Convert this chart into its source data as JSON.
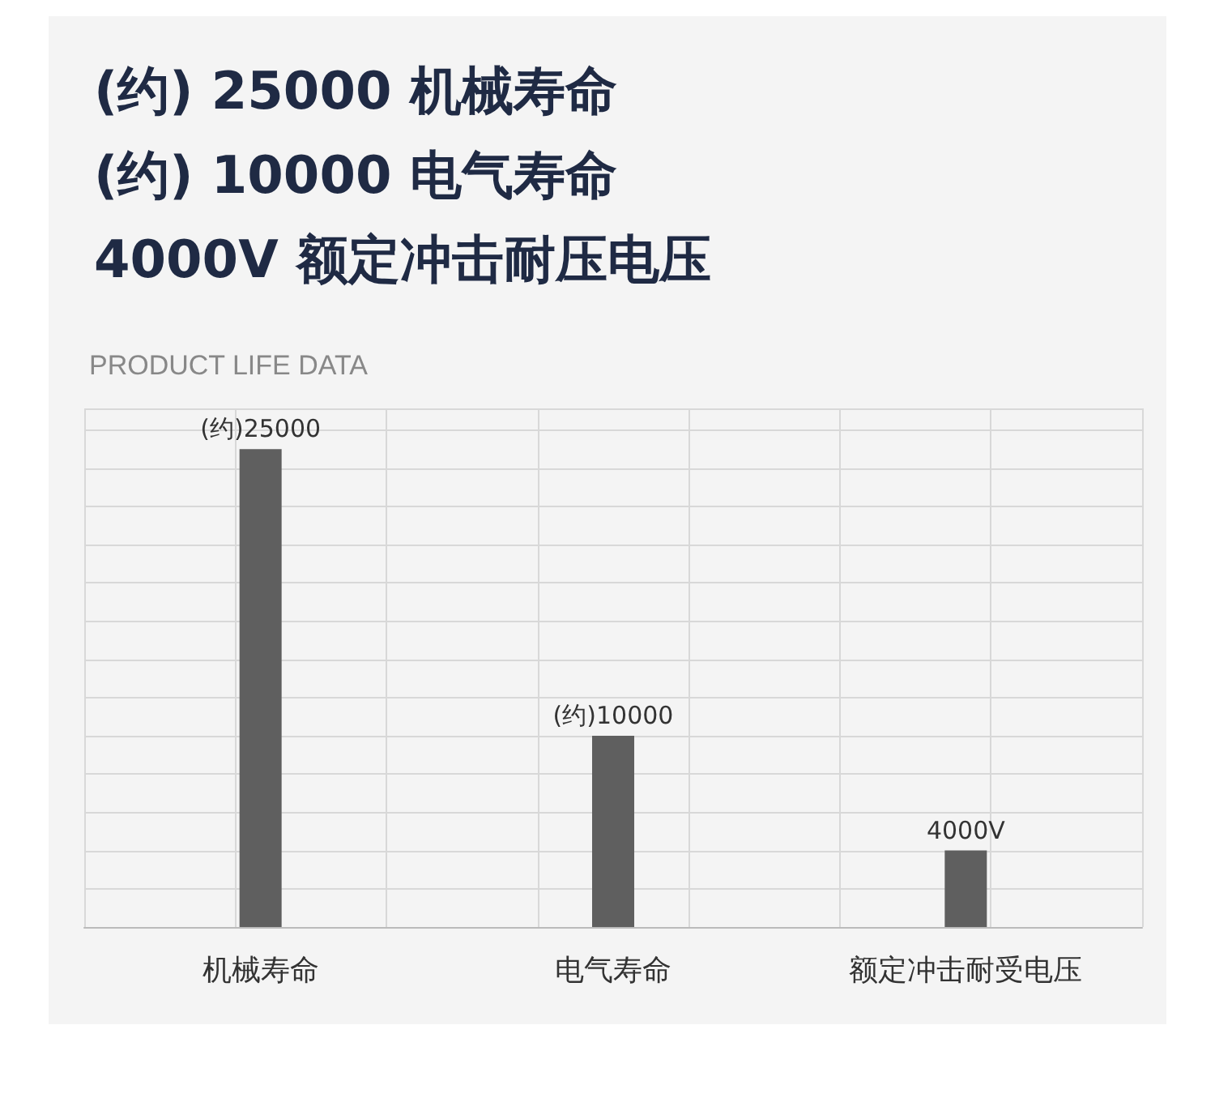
{
  "chart_data": {
    "type": "bar",
    "title": "PRODUCT LIFE DATA",
    "annotations": [
      "(约) 25000 机械寿命",
      "(约) 10000 电气寿命",
      "4000V 额定冲击耐压电压"
    ],
    "categories": [
      "机械寿命",
      "电气寿命",
      "额定冲击耐受电压"
    ],
    "values": [
      25000,
      10000,
      4000
    ],
    "value_labels": [
      "(约)25000",
      "(约)10000",
      "4000V"
    ],
    "color": "#5f5f5f",
    "grid": true
  }
}
